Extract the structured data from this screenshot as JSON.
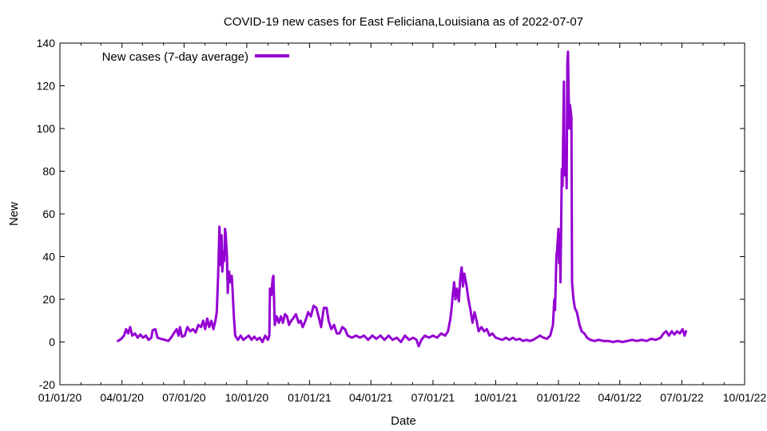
{
  "chart_data": {
    "type": "line",
    "title": "COVID-19 new cases for East Feliciana,Louisiana as of 2022-07-07",
    "xlabel": "Date",
    "ylabel": "New",
    "xlim": [
      "2020-01-01",
      "2022-10-01"
    ],
    "ylim": [
      -20,
      140
    ],
    "yticks": [
      -20,
      0,
      20,
      40,
      60,
      80,
      100,
      120,
      140
    ],
    "xticks": [
      {
        "date": "2020-01-01",
        "label": "01/01/20"
      },
      {
        "date": "2020-04-01",
        "label": "04/01/20"
      },
      {
        "date": "2020-07-01",
        "label": "07/01/20"
      },
      {
        "date": "2020-10-01",
        "label": "10/01/20"
      },
      {
        "date": "2021-01-01",
        "label": "01/01/21"
      },
      {
        "date": "2021-04-01",
        "label": "04/01/21"
      },
      {
        "date": "2021-07-01",
        "label": "07/01/21"
      },
      {
        "date": "2021-10-01",
        "label": "10/01/21"
      },
      {
        "date": "2022-01-01",
        "label": "01/01/22"
      },
      {
        "date": "2022-04-01",
        "label": "04/01/22"
      },
      {
        "date": "2022-07-01",
        "label": "07/01/22"
      },
      {
        "date": "2022-10-01",
        "label": "10/01/22"
      }
    ],
    "grid": false,
    "legend": "top-left",
    "series": [
      {
        "name": "New cases (7-day average)",
        "color": "#9400d3",
        "points": [
          [
            "2020-03-26",
            0.5
          ],
          [
            "2020-03-31",
            1.5
          ],
          [
            "2020-04-04",
            3
          ],
          [
            "2020-04-07",
            6
          ],
          [
            "2020-04-10",
            4
          ],
          [
            "2020-04-13",
            7
          ],
          [
            "2020-04-16",
            3
          ],
          [
            "2020-04-20",
            4
          ],
          [
            "2020-04-24",
            2
          ],
          [
            "2020-04-28",
            3.5
          ],
          [
            "2020-05-02",
            2
          ],
          [
            "2020-05-06",
            3
          ],
          [
            "2020-05-10",
            1
          ],
          [
            "2020-05-14",
            2
          ],
          [
            "2020-05-16",
            5.5
          ],
          [
            "2020-05-20",
            6
          ],
          [
            "2020-05-23",
            2
          ],
          [
            "2020-05-28",
            1.5
          ],
          [
            "2020-06-03",
            1
          ],
          [
            "2020-06-08",
            0.5
          ],
          [
            "2020-06-12",
            2
          ],
          [
            "2020-06-16",
            4
          ],
          [
            "2020-06-20",
            6
          ],
          [
            "2020-06-23",
            3
          ],
          [
            "2020-06-25",
            7
          ],
          [
            "2020-06-28",
            2.5
          ],
          [
            "2020-07-02",
            3
          ],
          [
            "2020-07-06",
            7
          ],
          [
            "2020-07-10",
            5
          ],
          [
            "2020-07-14",
            6
          ],
          [
            "2020-07-18",
            4.5
          ],
          [
            "2020-07-22",
            8
          ],
          [
            "2020-07-26",
            7
          ],
          [
            "2020-07-29",
            10
          ],
          [
            "2020-08-01",
            6
          ],
          [
            "2020-08-04",
            11
          ],
          [
            "2020-08-07",
            7
          ],
          [
            "2020-08-10",
            10
          ],
          [
            "2020-08-13",
            6
          ],
          [
            "2020-08-16",
            10
          ],
          [
            "2020-08-18",
            14
          ],
          [
            "2020-08-20",
            31
          ],
          [
            "2020-08-22",
            54
          ],
          [
            "2020-08-24",
            36
          ],
          [
            "2020-08-25",
            50
          ],
          [
            "2020-08-26",
            33
          ],
          [
            "2020-08-28",
            42
          ],
          [
            "2020-08-29",
            38
          ],
          [
            "2020-08-30",
            53
          ],
          [
            "2020-08-31",
            51
          ],
          [
            "2020-09-02",
            40
          ],
          [
            "2020-09-03",
            23
          ],
          [
            "2020-09-05",
            33
          ],
          [
            "2020-09-07",
            28
          ],
          [
            "2020-09-09",
            31
          ],
          [
            "2020-09-10",
            25
          ],
          [
            "2020-09-12",
            12
          ],
          [
            "2020-09-14",
            3
          ],
          [
            "2020-09-18",
            1
          ],
          [
            "2020-09-22",
            3
          ],
          [
            "2020-09-26",
            1
          ],
          [
            "2020-09-30",
            2
          ],
          [
            "2020-10-04",
            3
          ],
          [
            "2020-10-08",
            1
          ],
          [
            "2020-10-12",
            2.5
          ],
          [
            "2020-10-16",
            1
          ],
          [
            "2020-10-20",
            2
          ],
          [
            "2020-10-24",
            0
          ],
          [
            "2020-10-28",
            3
          ],
          [
            "2020-11-01",
            1
          ],
          [
            "2020-11-03",
            3
          ],
          [
            "2020-11-04",
            25
          ],
          [
            "2020-11-06",
            22
          ],
          [
            "2020-11-08",
            30
          ],
          [
            "2020-11-09",
            31
          ],
          [
            "2020-11-11",
            8
          ],
          [
            "2020-11-14",
            12
          ],
          [
            "2020-11-17",
            9
          ],
          [
            "2020-11-20",
            12
          ],
          [
            "2020-11-23",
            9
          ],
          [
            "2020-11-26",
            13
          ],
          [
            "2020-11-29",
            12
          ],
          [
            "2020-12-02",
            8
          ],
          [
            "2020-12-05",
            10
          ],
          [
            "2020-12-08",
            11
          ],
          [
            "2020-12-12",
            13
          ],
          [
            "2020-12-16",
            9
          ],
          [
            "2020-12-19",
            10
          ],
          [
            "2020-12-22",
            7
          ],
          [
            "2020-12-26",
            10
          ],
          [
            "2020-12-30",
            14
          ],
          [
            "2021-01-03",
            12
          ],
          [
            "2021-01-07",
            17
          ],
          [
            "2021-01-11",
            16
          ],
          [
            "2021-01-15",
            11
          ],
          [
            "2021-01-18",
            7
          ],
          [
            "2021-01-22",
            16
          ],
          [
            "2021-01-26",
            16
          ],
          [
            "2021-01-29",
            10
          ],
          [
            "2021-02-02",
            6
          ],
          [
            "2021-02-06",
            8
          ],
          [
            "2021-02-10",
            4
          ],
          [
            "2021-02-14",
            4
          ],
          [
            "2021-02-18",
            7
          ],
          [
            "2021-02-22",
            6
          ],
          [
            "2021-02-26",
            3
          ],
          [
            "2021-03-04",
            2
          ],
          [
            "2021-03-10",
            3
          ],
          [
            "2021-03-16",
            2
          ],
          [
            "2021-03-22",
            3
          ],
          [
            "2021-03-28",
            1
          ],
          [
            "2021-04-03",
            3
          ],
          [
            "2021-04-09",
            1.5
          ],
          [
            "2021-04-15",
            3
          ],
          [
            "2021-04-21",
            1
          ],
          [
            "2021-04-27",
            3
          ],
          [
            "2021-05-03",
            1
          ],
          [
            "2021-05-09",
            2
          ],
          [
            "2021-05-15",
            0
          ],
          [
            "2021-05-21",
            3
          ],
          [
            "2021-05-27",
            1
          ],
          [
            "2021-06-02",
            2
          ],
          [
            "2021-06-07",
            1
          ],
          [
            "2021-06-10",
            -2
          ],
          [
            "2021-06-14",
            1
          ],
          [
            "2021-06-19",
            3
          ],
          [
            "2021-06-25",
            2
          ],
          [
            "2021-07-01",
            3
          ],
          [
            "2021-07-07",
            2
          ],
          [
            "2021-07-13",
            4
          ],
          [
            "2021-07-19",
            3
          ],
          [
            "2021-07-23",
            5
          ],
          [
            "2021-07-26",
            10
          ],
          [
            "2021-07-28",
            15
          ],
          [
            "2021-07-30",
            22
          ],
          [
            "2021-08-01",
            28
          ],
          [
            "2021-08-03",
            20
          ],
          [
            "2021-08-05",
            25
          ],
          [
            "2021-08-08",
            19
          ],
          [
            "2021-08-10",
            30
          ],
          [
            "2021-08-12",
            35
          ],
          [
            "2021-08-14",
            26
          ],
          [
            "2021-08-16",
            32
          ],
          [
            "2021-08-19",
            27
          ],
          [
            "2021-08-22",
            20
          ],
          [
            "2021-08-25",
            15
          ],
          [
            "2021-08-28",
            9
          ],
          [
            "2021-08-31",
            14
          ],
          [
            "2021-09-03",
            10
          ],
          [
            "2021-09-06",
            5
          ],
          [
            "2021-09-10",
            7
          ],
          [
            "2021-09-14",
            5
          ],
          [
            "2021-09-18",
            6
          ],
          [
            "2021-09-22",
            3
          ],
          [
            "2021-09-26",
            4
          ],
          [
            "2021-10-01",
            2
          ],
          [
            "2021-10-06",
            1.5
          ],
          [
            "2021-10-11",
            1
          ],
          [
            "2021-10-16",
            2
          ],
          [
            "2021-10-21",
            1
          ],
          [
            "2021-10-26",
            2
          ],
          [
            "2021-10-31",
            1
          ],
          [
            "2021-11-05",
            1.5
          ],
          [
            "2021-11-10",
            0.5
          ],
          [
            "2021-11-15",
            1
          ],
          [
            "2021-11-20",
            0.5
          ],
          [
            "2021-11-25",
            1
          ],
          [
            "2021-11-30",
            2
          ],
          [
            "2021-12-05",
            3
          ],
          [
            "2021-12-10",
            2
          ],
          [
            "2021-12-15",
            1.5
          ],
          [
            "2021-12-20",
            3
          ],
          [
            "2021-12-24",
            8
          ],
          [
            "2021-12-26",
            20
          ],
          [
            "2021-12-27",
            15
          ],
          [
            "2021-12-29",
            40
          ],
          [
            "2021-12-30",
            43
          ],
          [
            "2022-01-01",
            53
          ],
          [
            "2022-01-02",
            37
          ],
          [
            "2022-01-03",
            50
          ],
          [
            "2022-01-04",
            28
          ],
          [
            "2022-01-06",
            81
          ],
          [
            "2022-01-07",
            73
          ],
          [
            "2022-01-09",
            122
          ],
          [
            "2022-01-10",
            78
          ],
          [
            "2022-01-12",
            90
          ],
          [
            "2022-01-13",
            72
          ],
          [
            "2022-01-14",
            130
          ],
          [
            "2022-01-15",
            136
          ],
          [
            "2022-01-16",
            115
          ],
          [
            "2022-01-17",
            100
          ],
          [
            "2022-01-18",
            111
          ],
          [
            "2022-01-20",
            105
          ],
          [
            "2022-01-21",
            28
          ],
          [
            "2022-01-23",
            20
          ],
          [
            "2022-01-25",
            16
          ],
          [
            "2022-01-28",
            14
          ],
          [
            "2022-02-01",
            8
          ],
          [
            "2022-02-04",
            5
          ],
          [
            "2022-02-08",
            4
          ],
          [
            "2022-02-12",
            2
          ],
          [
            "2022-02-17",
            1
          ],
          [
            "2022-02-23",
            0.5
          ],
          [
            "2022-03-01",
            1
          ],
          [
            "2022-03-08",
            0.5
          ],
          [
            "2022-03-15",
            0.5
          ],
          [
            "2022-03-22",
            0
          ],
          [
            "2022-03-29",
            0.5
          ],
          [
            "2022-04-05",
            0
          ],
          [
            "2022-04-12",
            0.5
          ],
          [
            "2022-04-19",
            1
          ],
          [
            "2022-04-26",
            0.5
          ],
          [
            "2022-05-03",
            1
          ],
          [
            "2022-05-10",
            0.5
          ],
          [
            "2022-05-17",
            1.5
          ],
          [
            "2022-05-24",
            1
          ],
          [
            "2022-05-31",
            2
          ],
          [
            "2022-06-04",
            4
          ],
          [
            "2022-06-08",
            5
          ],
          [
            "2022-06-12",
            3
          ],
          [
            "2022-06-16",
            5
          ],
          [
            "2022-06-20",
            3.5
          ],
          [
            "2022-06-24",
            5
          ],
          [
            "2022-06-28",
            4
          ],
          [
            "2022-07-02",
            6
          ],
          [
            "2022-07-05",
            3
          ],
          [
            "2022-07-07",
            5
          ]
        ]
      }
    ]
  }
}
